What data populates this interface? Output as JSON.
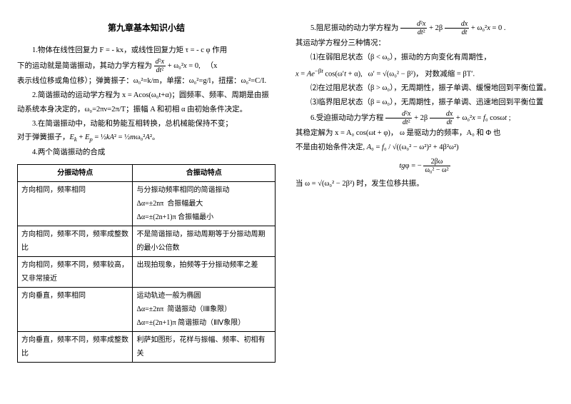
{
  "title": "第九章基本知识小结",
  "left": {
    "p1a": "1.物体在线性回复力 F = - kx，或线性回复力矩 τ = - c φ 作用",
    "p1b": "下的运动就是简谐振动，其动力学方程为 ",
    "p1eq": "d²x/dt² + ω₀² x = 0,",
    "p1c": "（x",
    "p1d": "表示线位移或角位移）；弹簧振子：ω₀²=k/m，单摆：ω₀²=g/l，扭摆：ω₀²=C/I.",
    "p2": "2.简谐振动的运动学方程为 x = Acos(ω₀t+α)；圆频率、频率、周期是由振动系统本身决定的，ω₀=2πν=2π/T；振幅 A 和初相 α 由初始条件决定。",
    "p3": "3.在简谐振动中，动能和势能互相转换，总机械能保持不变；",
    "p3b": "对于弹簧振子，Eₖ + Eₚ = ½kA² = ½mω₀²A²。",
    "p4": "4.两个简谐振动的合成"
  },
  "table": {
    "h1": "分振动特点",
    "h2": "合振动特点",
    "rows": [
      [
        "方向相同，频率相同",
        "与分振动频率相同的简谐振动\nΔα=±2nπ  合振幅最大\nΔα=±(2n+1)π 合振幅最小"
      ],
      [
        "方向相同，频率不同，频率成整数比",
        "不是简谐振动，振动周期等于分振动周期的最小公倍数"
      ],
      [
        "方向相同，频率不同，频率较高，又非常接近",
        "出现拍现象，拍频等于分振动频率之差"
      ],
      [
        "方向垂直，频率相同",
        "运动轨迹一般为椭圆\nΔα=±2nπ  简谐振动（ⅠⅢ象限）\nΔα=±(2n+1)π 简谐振动（ⅡⅣ象限）"
      ],
      [
        "方向垂直，频率不同，频率成整数比",
        "利萨如图形，花样与振幅、频率、初相有关"
      ]
    ]
  },
  "right": {
    "p5a": "5.阻尼振动的动力学方程为 ",
    "p5eq": "d²x/dt² + 2β dx/dt + ω₀² x = 0 .",
    "p5b": "其运动学方程分三种情况：",
    "p5c": "⑴在弱阻尼状态（β < ω₀），振动的方向变化有周期性，",
    "p5d_eq": "x = Ae⁻βt cos(ω′t + α),   ω′ = √(ω₀² − β²)，对数减缩 = βT′.",
    "p5e": "⑵在过阻尼状态（β > ω₀），无周期性，振子单调、缓慢地回到平衡位置。",
    "p5f": "⑶临界阻尼状态（β = ω₀），无周期性，振子单调、迅速地回到平衡位置",
    "p6a": "6.受迫振动动力学方程 ",
    "p6eq": "d²x/dt² + 2β dx/dt + ω₀² x = f₀ cosωt ;",
    "p6b": "其稳定解为  x = A₀ cos(ωt + φ)， ω 是驱动力的频率，A₀ 和 Φ 也",
    "p6c": "不是由初始条件决定, A₀ = f₀ / √((ω₀² − ω²)² + 4β²ω²)",
    "p6_teq": "tgφ = − 2βω / (ω₀² − ω²)",
    "p6d": "当 ω = √(ω₀² − 2β²) 时，发生位移共振。"
  }
}
